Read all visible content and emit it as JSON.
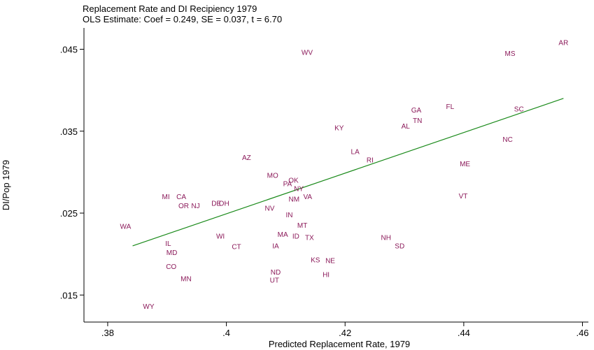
{
  "chart_data": {
    "type": "scatter",
    "title": "Replacement Rate and DI Recipiency 1979",
    "subtitle": "OLS Estimate: Coef = 0.249, SE = 0.037, t = 6.70",
    "xlabel": "Predicted Replacement Rate, 1979",
    "ylabel": "DI/Pop 1979",
    "xlim": [
      0.376,
      0.461
    ],
    "ylim": [
      0.0117,
      0.0476
    ],
    "x_ticks": [
      {
        "value": 0.38,
        "label": ".38"
      },
      {
        "value": 0.4,
        "label": ".4"
      },
      {
        "value": 0.42,
        "label": ".42"
      },
      {
        "value": 0.44,
        "label": ".44"
      },
      {
        "value": 0.46,
        "label": ".46"
      }
    ],
    "y_ticks": [
      {
        "value": 0.015,
        "label": ".015"
      },
      {
        "value": 0.025,
        "label": ".025"
      },
      {
        "value": 0.035,
        "label": ".035"
      },
      {
        "value": 0.045,
        "label": ".045"
      }
    ],
    "grid": false,
    "marker_color": "#8b1a5a",
    "fit_color": "#1a8a1a",
    "fit_line": [
      [
        0.3842,
        0.021
      ],
      [
        0.4568,
        0.039
      ]
    ],
    "points": [
      {
        "label": "AR",
        "x": 0.4568,
        "y": 0.0458
      },
      {
        "label": "MS",
        "x": 0.4478,
        "y": 0.0445
      },
      {
        "label": "WV",
        "x": 0.4136,
        "y": 0.0446
      },
      {
        "label": "FL",
        "x": 0.4377,
        "y": 0.038
      },
      {
        "label": "GA",
        "x": 0.432,
        "y": 0.0376
      },
      {
        "label": "SC",
        "x": 0.4493,
        "y": 0.0377
      },
      {
        "label": "TN",
        "x": 0.4322,
        "y": 0.0363
      },
      {
        "label": "AL",
        "x": 0.4302,
        "y": 0.0356
      },
      {
        "label": "KY",
        "x": 0.419,
        "y": 0.0354
      },
      {
        "label": "NC",
        "x": 0.4474,
        "y": 0.034
      },
      {
        "label": "LA",
        "x": 0.4217,
        "y": 0.0325
      },
      {
        "label": "RI",
        "x": 0.4242,
        "y": 0.0315
      },
      {
        "label": "AZ",
        "x": 0.4034,
        "y": 0.0318
      },
      {
        "label": "ME",
        "x": 0.4402,
        "y": 0.031
      },
      {
        "label": "MO",
        "x": 0.4078,
        "y": 0.0296
      },
      {
        "label": "OK",
        "x": 0.4113,
        "y": 0.029
      },
      {
        "label": "PA",
        "x": 0.4103,
        "y": 0.0286
      },
      {
        "label": "NY",
        "x": 0.4122,
        "y": 0.028
      },
      {
        "label": "VT",
        "x": 0.4399,
        "y": 0.0271
      },
      {
        "label": "VA",
        "x": 0.4137,
        "y": 0.027
      },
      {
        "label": "MI",
        "x": 0.3898,
        "y": 0.027
      },
      {
        "label": "CA",
        "x": 0.3924,
        "y": 0.027
      },
      {
        "label": "NM",
        "x": 0.4114,
        "y": 0.0267
      },
      {
        "label": "DE",
        "x": 0.3983,
        "y": 0.0262
      },
      {
        "label": "OH",
        "x": 0.3996,
        "y": 0.0262
      },
      {
        "label": "OR",
        "x": 0.3928,
        "y": 0.0259
      },
      {
        "label": "NJ",
        "x": 0.3948,
        "y": 0.0259
      },
      {
        "label": "NV",
        "x": 0.4073,
        "y": 0.0256
      },
      {
        "label": "IN",
        "x": 0.4106,
        "y": 0.0248
      },
      {
        "label": "WA",
        "x": 0.383,
        "y": 0.0234
      },
      {
        "label": "MT",
        "x": 0.4128,
        "y": 0.0235
      },
      {
        "label": "MA",
        "x": 0.4095,
        "y": 0.0224
      },
      {
        "label": "WI",
        "x": 0.399,
        "y": 0.0222
      },
      {
        "label": "ID",
        "x": 0.4117,
        "y": 0.0222
      },
      {
        "label": "TX",
        "x": 0.414,
        "y": 0.022
      },
      {
        "label": "NH",
        "x": 0.4269,
        "y": 0.022
      },
      {
        "label": "IL",
        "x": 0.3902,
        "y": 0.0213
      },
      {
        "label": "SD",
        "x": 0.4292,
        "y": 0.021
      },
      {
        "label": "CT",
        "x": 0.4017,
        "y": 0.0209
      },
      {
        "label": "IA",
        "x": 0.4083,
        "y": 0.021
      },
      {
        "label": "MD",
        "x": 0.3908,
        "y": 0.0202
      },
      {
        "label": "KS",
        "x": 0.415,
        "y": 0.0193
      },
      {
        "label": "NE",
        "x": 0.4175,
        "y": 0.0192
      },
      {
        "label": "CO",
        "x": 0.3907,
        "y": 0.0185
      },
      {
        "label": "ND",
        "x": 0.4083,
        "y": 0.0178
      },
      {
        "label": "HI",
        "x": 0.4168,
        "y": 0.0175
      },
      {
        "label": "MN",
        "x": 0.3932,
        "y": 0.017
      },
      {
        "label": "UT",
        "x": 0.4081,
        "y": 0.0168
      },
      {
        "label": "WY",
        "x": 0.3869,
        "y": 0.0136
      }
    ]
  }
}
